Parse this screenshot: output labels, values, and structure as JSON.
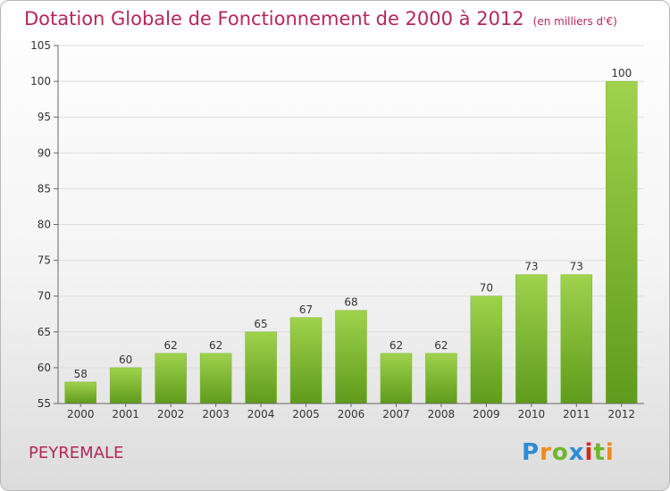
{
  "header": {
    "title": "Dotation Globale de Fonctionnement de 2000 à 2012",
    "unit": "(en milliers d'€)"
  },
  "footer": {
    "commune": "PEYREMALE",
    "logo": "Proxiti"
  },
  "colors": {
    "title": "#b5275a",
    "bar_top": "#9fd24d",
    "bar_bottom": "#5f9b1c",
    "grid": "#dddddd"
  },
  "chart_data": {
    "type": "bar",
    "categories": [
      "2000",
      "2001",
      "2002",
      "2003",
      "2004",
      "2005",
      "2006",
      "2007",
      "2008",
      "2009",
      "2010",
      "2011",
      "2012"
    ],
    "values": [
      58,
      60,
      62,
      62,
      65,
      67,
      68,
      62,
      62,
      70,
      73,
      73,
      100
    ],
    "ylim": [
      55,
      105
    ],
    "yticks": [
      55,
      60,
      65,
      70,
      75,
      80,
      85,
      90,
      95,
      100,
      105
    ],
    "grid": true,
    "data_labels": true
  }
}
